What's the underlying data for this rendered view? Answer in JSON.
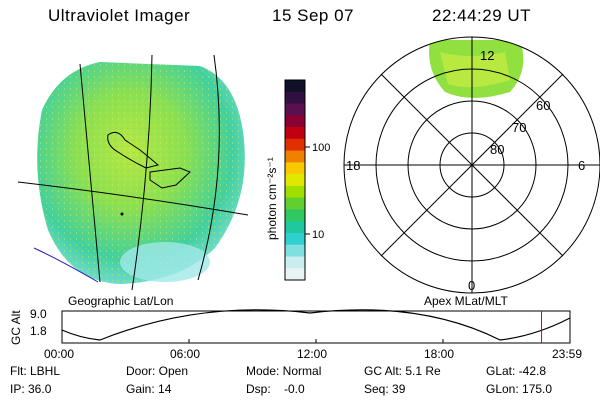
{
  "header": {
    "instrument": "Ultraviolet Imager",
    "date": "15 Sep 07",
    "time": "22:44:29 UT"
  },
  "colorbar": {
    "label": "photon cm⁻²s⁻¹",
    "ticks": [
      "100",
      "10"
    ],
    "colors": [
      "#101028",
      "#301040",
      "#5a1050",
      "#8a0030",
      "#c00010",
      "#e03000",
      "#f08000",
      "#f8c800",
      "#e0e800",
      "#a0e000",
      "#60d030",
      "#30c860",
      "#20c8a0",
      "#30d0d0",
      "#80e0e0",
      "#c8eef0",
      "#e8f4f4"
    ]
  },
  "geo_map": {
    "label": "Geographic Lat/Lon"
  },
  "apex_map": {
    "label": "Apex MLat/MLT",
    "mlt_labels": {
      "top": "12",
      "bottom": "0",
      "left": "18",
      "right": "6"
    },
    "lat_labels": [
      "60",
      "70",
      "80"
    ]
  },
  "orbit": {
    "ylabel": "GC Alt",
    "yticks": [
      "9.0",
      "1.8"
    ],
    "xticks": [
      "00:00",
      "06:00",
      "12:00",
      "18:00",
      "23:59"
    ],
    "marker_fraction": 0.944
  },
  "status": {
    "row1": [
      "Flt: LBHL",
      "Door: Open",
      "Mode: Normal",
      "GC Alt: 5.1 Re",
      "GLat: -42.8"
    ],
    "row2": [
      "IP: 36.0",
      "Gain: 14",
      "Dsp:    -0.0",
      "Seq: 39",
      "GLon: 175.0"
    ]
  }
}
